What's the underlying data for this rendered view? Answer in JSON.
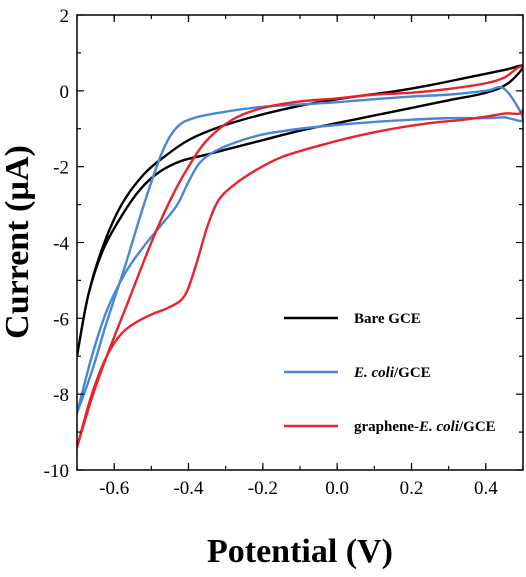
{
  "chart_data": {
    "type": "line",
    "xlabel": "Potential (V)",
    "ylabel": "Current (µA)",
    "xlim": [
      -0.7,
      0.5
    ],
    "ylim": [
      -10,
      2
    ],
    "x_ticks": [
      -0.6,
      -0.4,
      -0.2,
      0.0,
      0.2,
      0.4
    ],
    "x_tick_labels": [
      "-0.6",
      "-0.4",
      "-0.2",
      "0.0",
      "0.2",
      "0.4"
    ],
    "y_ticks": [
      -10,
      -8,
      -6,
      -4,
      -2,
      0,
      2
    ],
    "y_tick_labels": [
      "-10",
      "-8",
      "-6",
      "-4",
      "-2",
      "0",
      "2"
    ],
    "legend_position": "lower-right",
    "series": [
      {
        "name": "Bare GCE",
        "legend_parts": [
          {
            "text": "Bare GCE",
            "italic": false
          }
        ],
        "color": "#000000",
        "points": [
          [
            -0.7,
            -7.0
          ],
          [
            -0.67,
            -5.4
          ],
          [
            -0.63,
            -4.2
          ],
          [
            -0.58,
            -3.3
          ],
          [
            -0.53,
            -2.6
          ],
          [
            -0.48,
            -2.15
          ],
          [
            -0.42,
            -1.85
          ],
          [
            -0.35,
            -1.68
          ],
          [
            -0.28,
            -1.5
          ],
          [
            -0.2,
            -1.3
          ],
          [
            -0.1,
            -1.05
          ],
          [
            0.0,
            -0.85
          ],
          [
            0.1,
            -0.65
          ],
          [
            0.2,
            -0.45
          ],
          [
            0.3,
            -0.25
          ],
          [
            0.4,
            -0.05
          ],
          [
            0.46,
            0.2
          ],
          [
            0.5,
            0.65
          ],
          [
            0.45,
            0.55
          ],
          [
            0.35,
            0.35
          ],
          [
            0.25,
            0.15
          ],
          [
            0.15,
            -0.02
          ],
          [
            0.05,
            -0.15
          ],
          [
            -0.05,
            -0.3
          ],
          [
            -0.15,
            -0.5
          ],
          [
            -0.25,
            -0.75
          ],
          [
            -0.33,
            -1.0
          ],
          [
            -0.4,
            -1.3
          ],
          [
            -0.46,
            -1.7
          ],
          [
            -0.52,
            -2.2
          ],
          [
            -0.58,
            -3.0
          ],
          [
            -0.63,
            -4.1
          ],
          [
            -0.67,
            -5.4
          ],
          [
            -0.7,
            -7.0
          ]
        ]
      },
      {
        "name": "E. coli/GCE",
        "legend_parts": [
          {
            "text": "E. coli",
            "italic": true
          },
          {
            "text": "/GCE",
            "italic": false
          }
        ],
        "color": "#4a86d8",
        "points": [
          [
            -0.7,
            -8.5
          ],
          [
            -0.66,
            -7.0
          ],
          [
            -0.62,
            -5.8
          ],
          [
            -0.57,
            -4.8
          ],
          [
            -0.52,
            -4.1
          ],
          [
            -0.47,
            -3.5
          ],
          [
            -0.43,
            -3.0
          ],
          [
            -0.4,
            -2.4
          ],
          [
            -0.37,
            -1.9
          ],
          [
            -0.33,
            -1.6
          ],
          [
            -0.27,
            -1.35
          ],
          [
            -0.2,
            -1.15
          ],
          [
            -0.1,
            -1.0
          ],
          [
            0.0,
            -0.9
          ],
          [
            0.1,
            -0.82
          ],
          [
            0.2,
            -0.76
          ],
          [
            0.3,
            -0.72
          ],
          [
            0.4,
            -0.72
          ],
          [
            0.45,
            -0.7
          ],
          [
            0.5,
            -0.75
          ],
          [
            0.45,
            0.05
          ],
          [
            0.4,
            0.0
          ],
          [
            0.3,
            -0.1
          ],
          [
            0.2,
            -0.15
          ],
          [
            0.1,
            -0.22
          ],
          [
            0.0,
            -0.3
          ],
          [
            -0.1,
            -0.36
          ],
          [
            -0.2,
            -0.42
          ],
          [
            -0.3,
            -0.55
          ],
          [
            -0.38,
            -0.7
          ],
          [
            -0.43,
            -0.95
          ],
          [
            -0.47,
            -1.6
          ],
          [
            -0.52,
            -3.0
          ],
          [
            -0.57,
            -4.6
          ],
          [
            -0.62,
            -6.1
          ],
          [
            -0.66,
            -7.4
          ],
          [
            -0.7,
            -8.5
          ]
        ]
      },
      {
        "name": "graphene-E. coli/GCE",
        "legend_parts": [
          {
            "text": "graphene-",
            "italic": false
          },
          {
            "text": "E. coli",
            "italic": true
          },
          {
            "text": "/GCE",
            "italic": false
          }
        ],
        "color": "#e8232b",
        "points": [
          [
            -0.7,
            -9.4
          ],
          [
            -0.66,
            -8.0
          ],
          [
            -0.62,
            -7.0
          ],
          [
            -0.58,
            -6.4
          ],
          [
            -0.54,
            -6.1
          ],
          [
            -0.5,
            -5.9
          ],
          [
            -0.45,
            -5.7
          ],
          [
            -0.41,
            -5.4
          ],
          [
            -0.38,
            -4.6
          ],
          [
            -0.35,
            -3.6
          ],
          [
            -0.32,
            -2.9
          ],
          [
            -0.28,
            -2.5
          ],
          [
            -0.22,
            -2.1
          ],
          [
            -0.15,
            -1.75
          ],
          [
            -0.05,
            -1.45
          ],
          [
            0.05,
            -1.2
          ],
          [
            0.15,
            -1.0
          ],
          [
            0.25,
            -0.85
          ],
          [
            0.35,
            -0.75
          ],
          [
            0.45,
            -0.6
          ],
          [
            0.5,
            -0.5
          ],
          [
            0.5,
            0.6
          ],
          [
            0.45,
            0.35
          ],
          [
            0.4,
            0.2
          ],
          [
            0.3,
            0.05
          ],
          [
            0.2,
            -0.05
          ],
          [
            0.1,
            -0.1
          ],
          [
            0.0,
            -0.2
          ],
          [
            -0.1,
            -0.28
          ],
          [
            -0.2,
            -0.45
          ],
          [
            -0.28,
            -0.75
          ],
          [
            -0.35,
            -1.3
          ],
          [
            -0.4,
            -2.0
          ],
          [
            -0.45,
            -2.9
          ],
          [
            -0.5,
            -4.0
          ],
          [
            -0.56,
            -5.5
          ],
          [
            -0.62,
            -7.0
          ],
          [
            -0.66,
            -8.1
          ],
          [
            -0.7,
            -9.4
          ]
        ]
      }
    ]
  }
}
